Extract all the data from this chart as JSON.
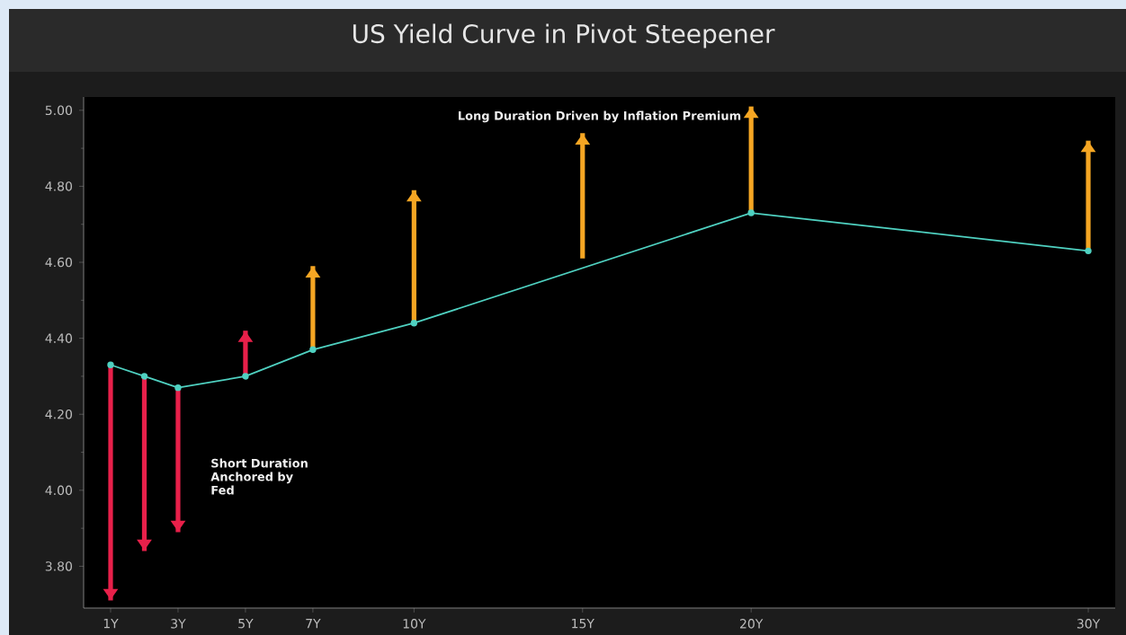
{
  "chart_data": {
    "type": "line",
    "title": "US Yield Curve in Pivot Steepener",
    "annotations": [
      "Long Duration Driven by Inflation Premium",
      "Short Duration Anchored by Fed"
    ],
    "series": [
      {
        "color": "#4fd1c1",
        "x": [
          1,
          2,
          3,
          5,
          7,
          10,
          20,
          30
        ],
        "values": [
          4.33,
          4.3,
          4.27,
          4.3,
          4.37,
          4.44,
          4.73,
          4.63
        ]
      },
      {
        "type": "bar",
        "x": [
          1,
          2,
          3,
          5,
          7,
          10,
          15,
          20,
          30
        ],
        "base": [
          4.33,
          4.3,
          4.27,
          4.3,
          4.37,
          4.44,
          4.61,
          4.73,
          4.63
        ],
        "values": [
          -0.62,
          -0.46,
          -0.38,
          0.12,
          0.22,
          0.35,
          0.33,
          0.28,
          0.29
        ],
        "colors": [
          "#e8204a",
          "#e8204a",
          "#e8204a",
          "#e8204a",
          "#f5a623",
          "#f5a623",
          "#f5a623",
          "#f5a623",
          "#f5a623"
        ]
      }
    ],
    "xlim": [
      0.2,
      30.8
    ],
    "ylim": [
      3.69,
      5.035
    ],
    "xticks": [
      {
        "value": 1,
        "label": "1Y"
      },
      {
        "value": 3,
        "label": "3Y"
      },
      {
        "value": 5,
        "label": "5Y"
      },
      {
        "value": 7,
        "label": "7Y"
      },
      {
        "value": 10,
        "label": "10Y"
      },
      {
        "value": 15,
        "label": "15Y"
      },
      {
        "value": 20,
        "label": "20Y"
      },
      {
        "value": 30,
        "label": "30Y"
      }
    ],
    "yticks": [
      {
        "value": 3.8,
        "label": "3.80"
      },
      {
        "value": 4.0,
        "label": "4.00"
      },
      {
        "value": 4.2,
        "label": "4.20"
      },
      {
        "value": 4.4,
        "label": "4.40"
      },
      {
        "value": 4.6,
        "label": "4.60"
      },
      {
        "value": 4.8,
        "label": "4.80"
      },
      {
        "value": 5.0,
        "label": "5.00"
      }
    ],
    "grid": false,
    "marker": "circle",
    "line_style": "solid"
  }
}
